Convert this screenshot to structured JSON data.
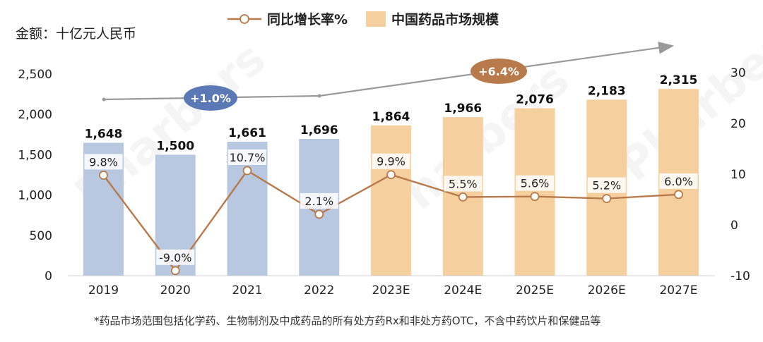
{
  "chart_data": {
    "type": "bar",
    "unit_label": "金额：十亿元人民币",
    "categories": [
      "2019",
      "2020",
      "2021",
      "2022",
      "2023E",
      "2024E",
      "2025E",
      "2026E",
      "2027E"
    ],
    "series": [
      {
        "name": "中国药品市场规模",
        "type": "bar",
        "axis": "left",
        "values": [
          1648,
          1500,
          1661,
          1696,
          1864,
          1966,
          2076,
          2183,
          2315
        ],
        "labels": [
          "1,648",
          "1,500",
          "1,661",
          "1,696",
          "1,864",
          "1,966",
          "2,076",
          "2,183",
          "2,315"
        ]
      },
      {
        "name": "同比增长率%",
        "type": "line",
        "axis": "right",
        "values": [
          9.8,
          -9.0,
          10.7,
          2.1,
          9.9,
          5.5,
          5.6,
          5.2,
          6.0
        ],
        "labels": [
          "9.8%",
          "-9.0%",
          "10.7%",
          "2.1%",
          "9.9%",
          "5.5%",
          "5.6%",
          "5.2%",
          "6.0%"
        ]
      }
    ],
    "y_left": {
      "min": 0,
      "max": 2500,
      "ticks": [
        "0",
        "500",
        "1,000",
        "1,500",
        "2,000",
        "2,500"
      ]
    },
    "y_right": {
      "min": -10,
      "max": 30,
      "ticks": [
        "-10",
        "0",
        "10",
        "20",
        "30"
      ]
    },
    "legend_position": "top",
    "grid": false,
    "bar_colors": {
      "actual": "#B8C8E0",
      "forecast": "#F6CF9E"
    },
    "line_color": "#B87A4B",
    "annotations": [
      {
        "text": "+1.0%",
        "span": [
          "2019",
          "2022"
        ],
        "color": "#5A79B5"
      },
      {
        "text": "+6.4%",
        "span": [
          "2022",
          "2027E"
        ],
        "color": "#B87A4B"
      }
    ],
    "footnote": "*药品市场范围包括化学药、生物制剂及中成药品的所有处方药Rx和非处方药OTC，不含中药饮片和保健品等"
  },
  "watermark_text": "Pharbers"
}
